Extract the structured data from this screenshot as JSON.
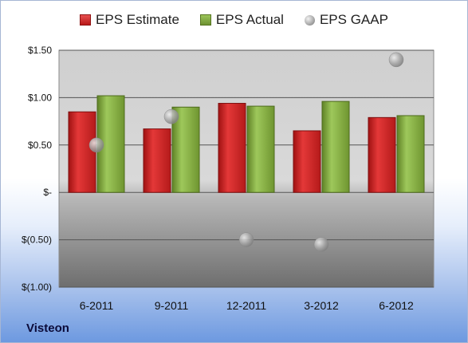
{
  "chart_data": {
    "type": "bar",
    "categories": [
      "6-2011",
      "9-2011",
      "12-2011",
      "3-2012",
      "6-2012"
    ],
    "series": [
      {
        "name": "EPS Estimate",
        "kind": "bar",
        "color": "#c8201f",
        "values": [
          0.85,
          0.67,
          0.94,
          0.65,
          0.79
        ]
      },
      {
        "name": "EPS Actual",
        "kind": "bar",
        "color": "#7fa93c",
        "values": [
          1.02,
          0.9,
          0.91,
          0.96,
          0.81
        ]
      },
      {
        "name": "EPS GAAP",
        "kind": "scatter",
        "color": "#9a9a9a",
        "values": [
          0.5,
          0.8,
          -0.5,
          -0.55,
          1.4
        ]
      }
    ],
    "ylim": [
      -1.0,
      1.5
    ],
    "yticks": [
      1.5,
      1.0,
      0.5,
      0,
      -0.5,
      -1.0
    ],
    "ytick_labels": [
      "$1.50",
      "$1.00",
      "$0.50",
      "$-",
      "$(0.50)",
      "$(1.00)"
    ],
    "grid": true,
    "legend_position": "top"
  },
  "company_label": "Visteon"
}
